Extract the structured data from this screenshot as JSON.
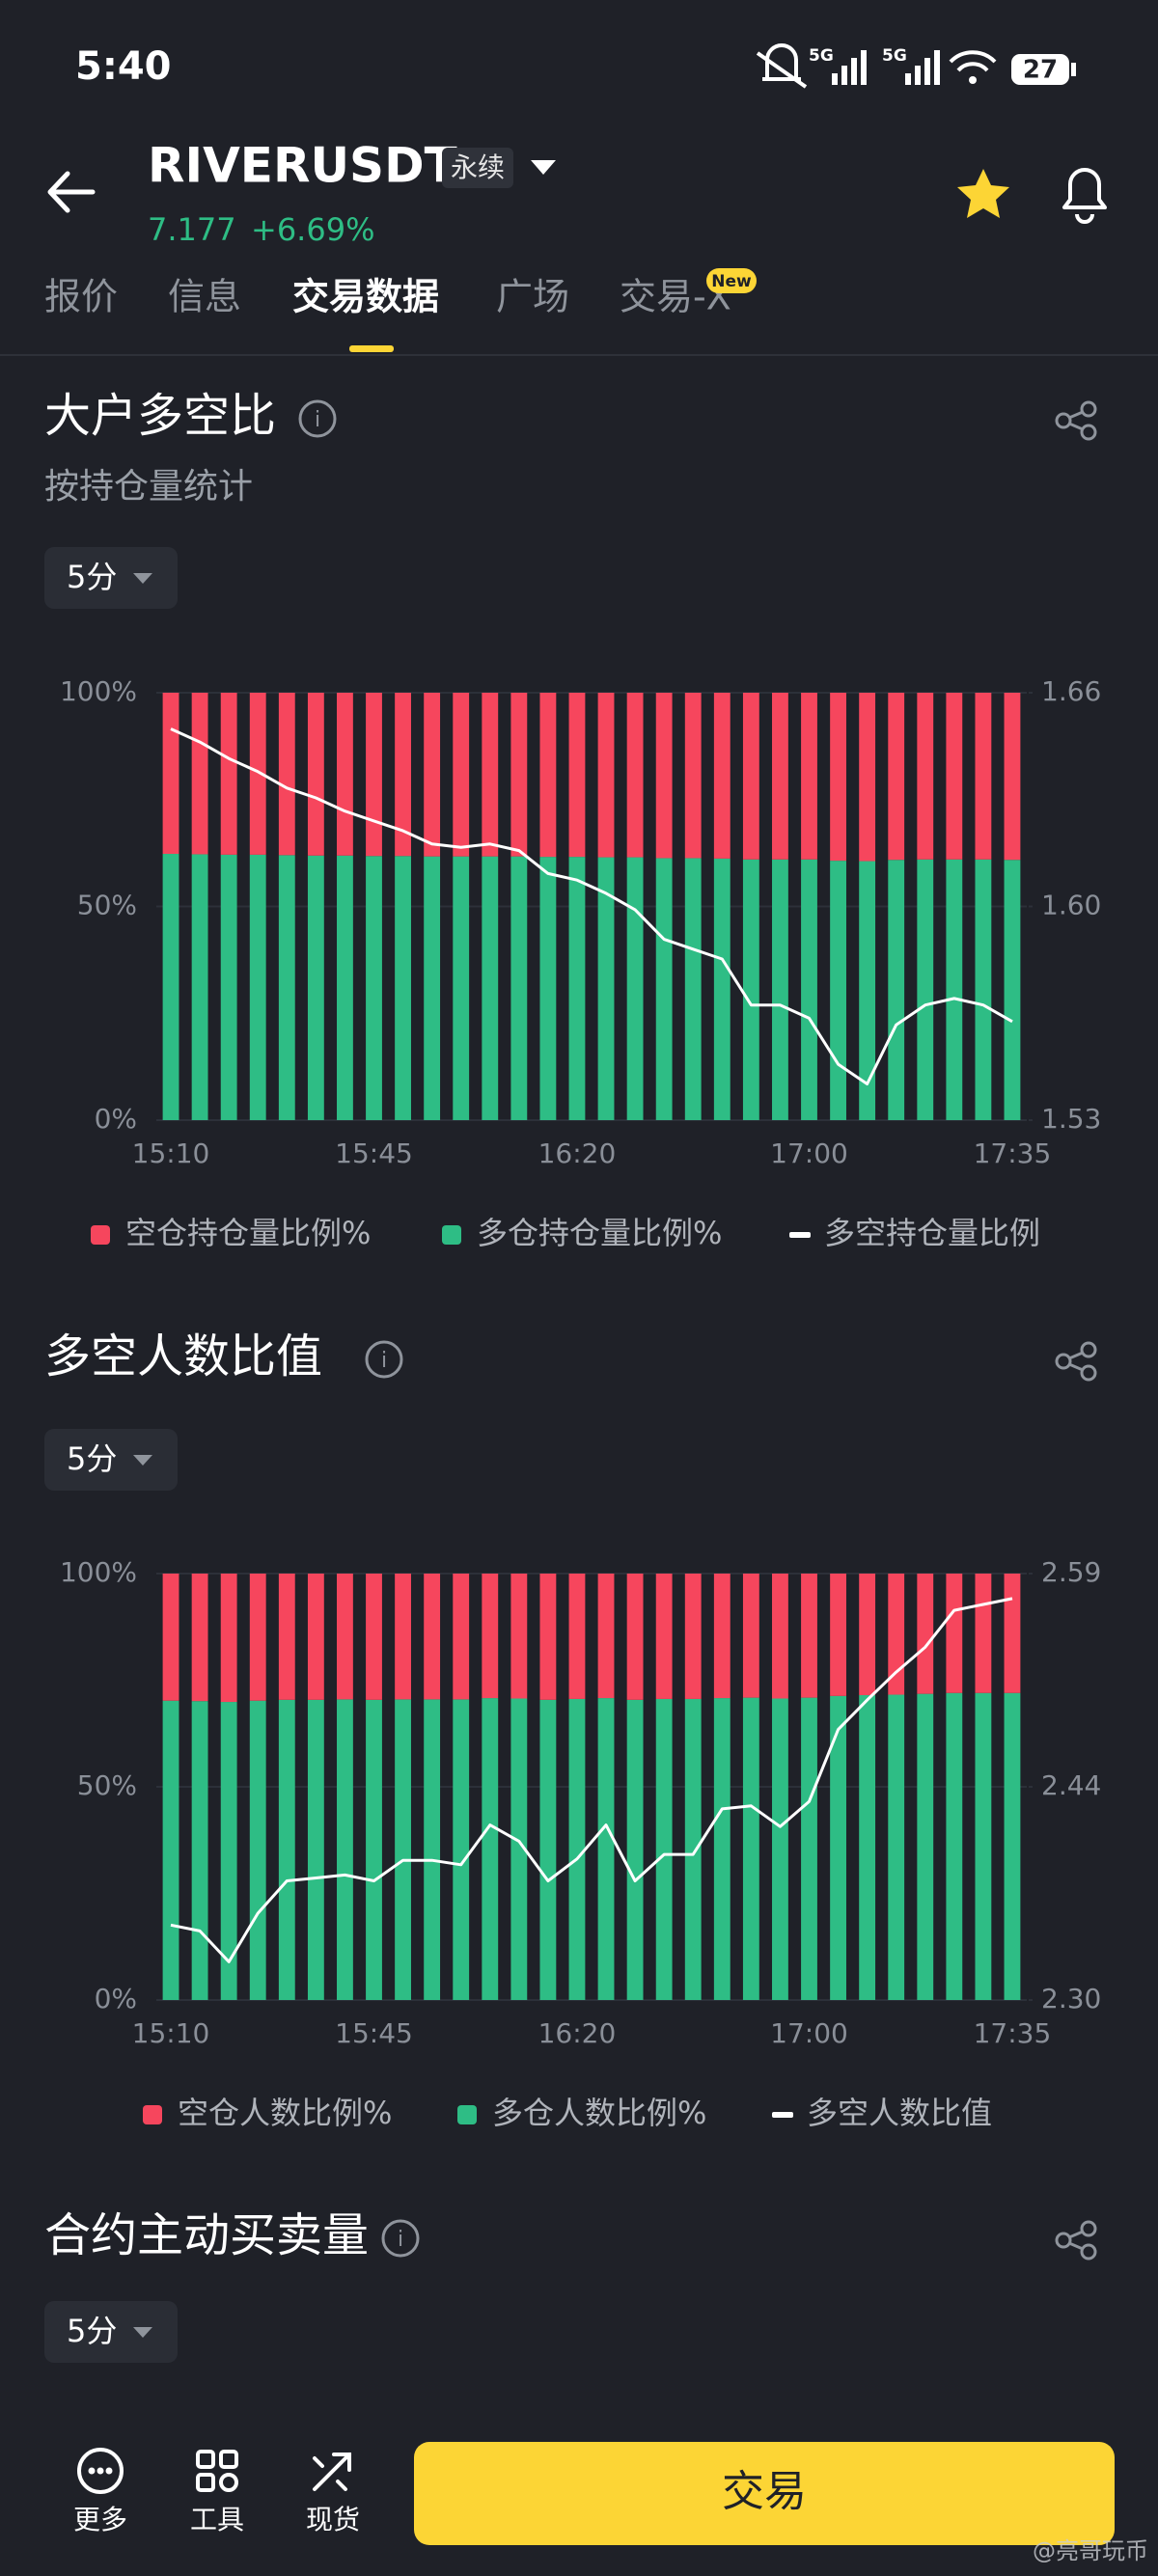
{
  "status_bar": {
    "time": "5:40",
    "network": [
      "5G",
      "5G"
    ],
    "battery": "27"
  },
  "header": {
    "symbol": "RIVERUSDT",
    "badge": "永续",
    "price": "7.177",
    "change": "+6.69%"
  },
  "tabs": [
    "报价",
    "信息",
    "交易数据",
    "广场",
    "交易-X"
  ],
  "tab_badge": "New",
  "chart_data": [
    {
      "type": "bar",
      "stacked": true,
      "title": "大户多空比",
      "subtitle": "按持仓量统计",
      "interval": "5分",
      "categories": [
        "15:10",
        null,
        null,
        null,
        null,
        null,
        null,
        "15:45",
        null,
        null,
        null,
        null,
        null,
        null,
        "16:20",
        null,
        null,
        null,
        null,
        null,
        null,
        null,
        "17:00",
        null,
        null,
        null,
        null,
        null,
        null,
        "17:35"
      ],
      "series": [
        {
          "name": "空仓持仓量比例%",
          "color": "#f6465d",
          "values": [
            37.7,
            37.8,
            37.9,
            37.9,
            38.0,
            38.1,
            38.1,
            38.2,
            38.2,
            38.3,
            38.3,
            38.3,
            38.3,
            38.4,
            38.4,
            38.5,
            38.5,
            38.7,
            38.7,
            38.8,
            39.0,
            39.0,
            39.0,
            39.3,
            39.4,
            39.1,
            39.0,
            39.0,
            39.0,
            39.1
          ]
        },
        {
          "name": "多仓持仓量比例%",
          "color": "#2ebd85",
          "values": [
            62.3,
            62.2,
            62.1,
            62.1,
            62.0,
            61.9,
            61.9,
            61.8,
            61.8,
            61.7,
            61.7,
            61.7,
            61.7,
            61.6,
            61.6,
            61.5,
            61.5,
            61.3,
            61.3,
            61.2,
            61.0,
            61.0,
            61.0,
            60.7,
            60.6,
            60.9,
            61.0,
            61.0,
            61.0,
            60.9
          ]
        },
        {
          "name": "多空持仓量比例",
          "color": "#ffffff",
          "type": "line",
          "axis": "y2",
          "values": [
            1.649,
            1.645,
            1.64,
            1.636,
            1.631,
            1.628,
            1.624,
            1.621,
            1.618,
            1.614,
            1.613,
            1.614,
            1.612,
            1.605,
            1.603,
            1.599,
            1.594,
            1.585,
            1.582,
            1.579,
            1.565,
            1.565,
            1.561,
            1.547,
            1.541,
            1.559,
            1.565,
            1.567,
            1.565,
            1.56
          ]
        }
      ],
      "ylim": [
        0,
        100
      ],
      "yticks": [
        {
          "value": 0,
          "label": "0%"
        },
        {
          "value": 50,
          "label": "50%"
        },
        {
          "value": 100,
          "label": "100%"
        }
      ],
      "y2lim": [
        1.53,
        1.66
      ],
      "y2ticks": [
        1.53,
        {
          "value": 1.595,
          "label": "1.60"
        },
        1.66
      ],
      "grid": true
    },
    {
      "type": "bar",
      "stacked": true,
      "title": "多空人数比值",
      "interval": "5分",
      "categories": [
        "15:10",
        null,
        null,
        null,
        null,
        null,
        null,
        "15:45",
        null,
        null,
        null,
        null,
        null,
        null,
        "16:20",
        null,
        null,
        null,
        null,
        null,
        null,
        null,
        "17:00",
        null,
        null,
        null,
        null,
        null,
        null,
        "17:35"
      ],
      "series": [
        {
          "name": "空仓人数比例%",
          "color": "#f6465d",
          "values": [
            29.8,
            29.9,
            30.1,
            29.8,
            29.6,
            29.6,
            29.5,
            29.6,
            29.5,
            29.5,
            29.5,
            29.2,
            29.3,
            29.6,
            29.4,
            29.2,
            29.6,
            29.4,
            29.4,
            29.2,
            29.1,
            29.3,
            29.1,
            28.7,
            28.5,
            28.4,
            28.2,
            28.0,
            28.0,
            28.0
          ]
        },
        {
          "name": "多仓人数比例%",
          "color": "#2ebd85",
          "values": [
            70.2,
            70.1,
            69.9,
            70.2,
            70.4,
            70.4,
            70.5,
            70.4,
            70.5,
            70.5,
            70.5,
            70.8,
            70.7,
            70.4,
            70.6,
            70.8,
            70.4,
            70.6,
            70.6,
            70.8,
            70.9,
            70.7,
            70.9,
            71.3,
            71.5,
            71.6,
            71.8,
            72.0,
            72.0,
            72.0
          ]
        },
        {
          "name": "多空人数比值",
          "color": "#ffffff",
          "type": "line",
          "axis": "y2",
          "values": [
            2.351,
            2.347,
            2.326,
            2.359,
            2.381,
            2.383,
            2.385,
            2.381,
            2.395,
            2.395,
            2.392,
            2.419,
            2.408,
            2.381,
            2.396,
            2.419,
            2.381,
            2.399,
            2.399,
            2.43,
            2.432,
            2.418,
            2.435,
            2.484,
            2.504,
            2.523,
            2.54,
            2.565,
            2.569,
            2.573
          ]
        }
      ],
      "ylim": [
        0,
        100
      ],
      "yticks": [
        {
          "value": 0,
          "label": "0%"
        },
        {
          "value": 50,
          "label": "50%"
        },
        {
          "value": 100,
          "label": "100%"
        }
      ],
      "y2lim": [
        2.3,
        2.59
      ],
      "y2ticks": [
        {
          "value": 2.3,
          "label": "2.30"
        },
        {
          "value": 2.445,
          "label": "2.44"
        },
        2.59
      ],
      "grid": true
    }
  ],
  "volume_section": {
    "title": "合约主动买卖量",
    "interval": "5分"
  },
  "bottom_nav": [
    "更多",
    "工具",
    "现货"
  ],
  "trade_button": "交易",
  "watermark": "@亮哥玩币"
}
